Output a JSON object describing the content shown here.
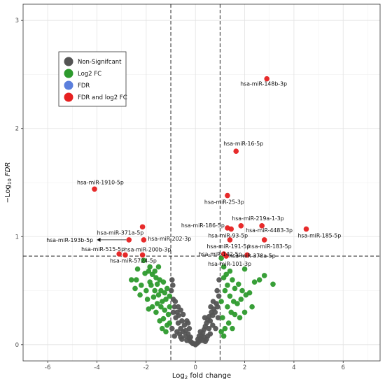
{
  "chart_data": {
    "type": "scatter",
    "xlabel": "Log2 fold change",
    "ylabel": "-Log10 FDR",
    "xlim": [
      -7.0,
      7.5
    ],
    "ylim": [
      -0.15,
      3.15
    ],
    "x_ticks": [
      -6,
      -4,
      -2,
      0,
      2,
      4,
      6
    ],
    "y_ticks": [
      0,
      1,
      2,
      3
    ],
    "vlines": [
      -1,
      1
    ],
    "hline": 0.82,
    "grid": true,
    "legend": {
      "position": "top-left",
      "entries": [
        {
          "label": "Non-Signifcant",
          "color": "#545454"
        },
        {
          "label": "Log2 FC",
          "color": "#2d9a2d"
        },
        {
          "label": "FDR",
          "color": "#5b7fdc"
        },
        {
          "label": "FDR and log2 FC",
          "color": "#e62020"
        }
      ]
    },
    "series": [
      {
        "name": "Non-Signifcant",
        "color": "#545454",
        "points": [
          [
            -0.9,
            0.42
          ],
          [
            -0.85,
            0.35
          ],
          [
            -0.75,
            0.3
          ],
          [
            -0.8,
            0.25
          ],
          [
            -0.7,
            0.2
          ],
          [
            -0.95,
            0.15
          ],
          [
            -0.65,
            0.1
          ],
          [
            -0.6,
            0.07
          ],
          [
            -0.55,
            0.05
          ],
          [
            -0.5,
            0.12
          ],
          [
            -0.45,
            0.18
          ],
          [
            -0.4,
            0.08
          ],
          [
            -0.35,
            0.04
          ],
          [
            -0.3,
            0.1
          ],
          [
            -0.25,
            0.06
          ],
          [
            -0.2,
            0.03
          ],
          [
            -0.15,
            0.02
          ],
          [
            -0.1,
            0.01
          ],
          [
            -0.05,
            0.01
          ],
          [
            0.0,
            0.0
          ],
          [
            0.05,
            0.01
          ],
          [
            0.1,
            0.02
          ],
          [
            0.15,
            0.03
          ],
          [
            0.2,
            0.05
          ],
          [
            0.25,
            0.08
          ],
          [
            0.3,
            0.11
          ],
          [
            0.35,
            0.14
          ],
          [
            0.4,
            0.17
          ],
          [
            0.45,
            0.2
          ],
          [
            0.5,
            0.23
          ],
          [
            0.55,
            0.26
          ],
          [
            0.6,
            0.22
          ],
          [
            0.65,
            0.3
          ],
          [
            0.7,
            0.27
          ],
          [
            0.75,
            0.33
          ],
          [
            0.8,
            0.3
          ],
          [
            0.85,
            0.38
          ],
          [
            0.9,
            0.35
          ],
          [
            0.95,
            0.45
          ],
          [
            0.7,
            0.18
          ],
          [
            0.6,
            0.1
          ],
          [
            0.5,
            0.08
          ],
          [
            0.45,
            0.05
          ],
          [
            0.4,
            0.03
          ],
          [
            0.35,
            0.07
          ],
          [
            0.3,
            0.04
          ],
          [
            -0.3,
            0.2
          ],
          [
            -0.55,
            0.22
          ],
          [
            -0.75,
            0.12
          ],
          [
            -0.85,
            0.08
          ],
          [
            -0.9,
            0.3
          ],
          [
            -0.98,
            0.5
          ],
          [
            -0.92,
            0.55
          ],
          [
            -0.6,
            0.15
          ],
          [
            -0.4,
            0.13
          ],
          [
            -0.2,
            0.07
          ],
          [
            0.2,
            0.12
          ],
          [
            0.88,
            0.5
          ],
          [
            0.92,
            0.25
          ],
          [
            0.82,
            0.15
          ],
          [
            -0.82,
            0.4
          ],
          [
            -0.7,
            0.35
          ],
          [
            -0.68,
            0.27
          ],
          [
            -0.5,
            0.28
          ],
          [
            -0.35,
            0.22
          ],
          [
            0.15,
            0.08
          ],
          [
            0.55,
            0.15
          ],
          [
            0.72,
            0.4
          ],
          [
            0.62,
            0.35
          ],
          [
            -0.95,
            0.6
          ],
          [
            0.96,
            0.6
          ],
          [
            -0.6,
            0.32
          ],
          [
            0.38,
            0.25
          ],
          [
            -0.25,
            0.15
          ],
          [
            0.1,
            0.05
          ]
        ]
      },
      {
        "name": "Log2 FC",
        "color": "#2d9a2d",
        "points": [
          [
            -2.35,
            0.7
          ],
          [
            -2.1,
            0.78
          ],
          [
            -1.85,
            0.72
          ],
          [
            -1.9,
            0.68
          ],
          [
            -1.6,
            0.62
          ],
          [
            -1.75,
            0.65
          ],
          [
            -1.55,
            0.56
          ],
          [
            -1.45,
            0.6
          ],
          [
            -1.3,
            0.58
          ],
          [
            -1.15,
            0.52
          ],
          [
            -1.4,
            0.5
          ],
          [
            -1.25,
            0.48
          ],
          [
            -1.05,
            0.45
          ],
          [
            -1.2,
            0.42
          ],
          [
            -1.35,
            0.4
          ],
          [
            -1.5,
            0.46
          ],
          [
            -1.65,
            0.5
          ],
          [
            -1.8,
            0.55
          ],
          [
            -2.0,
            0.5
          ],
          [
            -2.2,
            0.55
          ],
          [
            -2.4,
            0.6
          ],
          [
            -2.6,
            0.6
          ],
          [
            -2.25,
            0.46
          ],
          [
            -1.95,
            0.42
          ],
          [
            -1.7,
            0.44
          ],
          [
            -1.55,
            0.38
          ],
          [
            -1.4,
            0.35
          ],
          [
            -1.25,
            0.32
          ],
          [
            -1.1,
            0.28
          ],
          [
            -1.3,
            0.24
          ],
          [
            -1.45,
            0.22
          ],
          [
            -1.6,
            0.3
          ],
          [
            -1.75,
            0.35
          ],
          [
            -1.9,
            0.33
          ],
          [
            -1.15,
            0.18
          ],
          [
            -1.05,
            0.2
          ],
          [
            -1.2,
            0.12
          ],
          [
            -1.35,
            0.15
          ],
          [
            -1.05,
            0.35
          ],
          [
            -1.65,
            0.68
          ],
          [
            -2.05,
            0.66
          ],
          [
            -1.85,
            0.58
          ],
          [
            -2.45,
            0.52
          ],
          [
            -1.5,
            0.72
          ],
          [
            1.05,
            0.8
          ],
          [
            1.15,
            0.62
          ],
          [
            1.2,
            0.5
          ],
          [
            1.3,
            0.55
          ],
          [
            1.4,
            0.45
          ],
          [
            1.5,
            0.6
          ],
          [
            1.6,
            0.52
          ],
          [
            1.75,
            0.56
          ],
          [
            1.9,
            0.5
          ],
          [
            2.05,
            0.46
          ],
          [
            2.2,
            0.48
          ],
          [
            2.4,
            0.58
          ],
          [
            2.6,
            0.6
          ],
          [
            2.8,
            0.64
          ],
          [
            3.15,
            0.56
          ],
          [
            1.3,
            0.35
          ],
          [
            1.45,
            0.3
          ],
          [
            1.6,
            0.28
          ],
          [
            1.8,
            0.25
          ],
          [
            1.1,
            0.25
          ],
          [
            1.05,
            0.4
          ],
          [
            1.2,
            0.15
          ],
          [
            1.05,
            0.12
          ],
          [
            1.35,
            0.2
          ],
          [
            1.5,
            0.15
          ],
          [
            2.0,
            0.3
          ],
          [
            1.7,
            0.38
          ],
          [
            2.3,
            0.35
          ],
          [
            1.15,
            0.72
          ],
          [
            1.25,
            0.65
          ],
          [
            2.0,
            0.7
          ],
          [
            1.4,
            0.68
          ],
          [
            1.85,
            0.42
          ],
          [
            1.55,
            0.4
          ],
          [
            1.15,
            0.08
          ]
        ]
      },
      {
        "name": "FDR and log2 FC",
        "color": "#e62020",
        "points": [
          [
            2.9,
            2.46
          ],
          [
            1.65,
            1.79
          ],
          [
            -4.1,
            1.44
          ],
          [
            1.3,
            1.38
          ],
          [
            -2.15,
            1.09
          ],
          [
            1.3,
            1.08
          ],
          [
            1.45,
            1.07
          ],
          [
            1.85,
            1.1
          ],
          [
            2.7,
            1.1
          ],
          [
            4.5,
            1.07
          ],
          [
            -2.7,
            0.97
          ],
          [
            -2.1,
            0.97
          ],
          [
            1.4,
            0.97
          ],
          [
            2.8,
            0.97
          ],
          [
            -3.1,
            0.84
          ],
          [
            -2.85,
            0.83
          ],
          [
            -2.15,
            0.83
          ],
          [
            1.15,
            0.84
          ],
          [
            1.25,
            0.82
          ],
          [
            2.1,
            0.83
          ]
        ]
      }
    ],
    "annotations": [
      {
        "label": "hsa-miR-148b-3p",
        "x": 2.9,
        "y": 2.46
      },
      {
        "label": "hsa-miR-16-5p",
        "x": 1.65,
        "y": 1.79
      },
      {
        "label": "hsa-miR-1910-5p",
        "x": -4.1,
        "y": 1.44
      },
      {
        "label": "hsa-miR-25-3p",
        "x": 1.3,
        "y": 1.38
      },
      {
        "label": "hsa-miR-371a-5p",
        "x": -2.15,
        "y": 1.09
      },
      {
        "label": "hsa-miR-186-5p",
        "x": 1.3,
        "y": 1.08
      },
      {
        "label": "hsa-miR-219a-1-3p",
        "x": 1.85,
        "y": 1.1
      },
      {
        "label": "hsa-miR-4483-3p",
        "x": 2.7,
        "y": 1.1
      },
      {
        "label": "hsa-miR-185-5p",
        "x": 4.5,
        "y": 1.07
      },
      {
        "label": "hsa-miR-193b-5p",
        "x": -2.7,
        "y": 0.97
      },
      {
        "label": "hsa-miR-202-3p",
        "x": -2.1,
        "y": 0.97
      },
      {
        "label": "hsa-miR-93-5p",
        "x": 1.45,
        "y": 1.07
      },
      {
        "label": "hsa-miR-191-5p",
        "x": 1.4,
        "y": 0.97
      },
      {
        "label": "hsa-miR-183-5p",
        "x": 2.8,
        "y": 0.97
      },
      {
        "label": "hsa-miR-515-5p",
        "x": -3.1,
        "y": 0.84
      },
      {
        "label": "hsa-miR-200b-3p",
        "x": -2.15,
        "y": 0.83
      },
      {
        "label": "hsa-miR-5724-5p",
        "x": -2.85,
        "y": 0.83
      },
      {
        "label": "hsa-miR-142-5p",
        "x": 1.15,
        "y": 0.84
      },
      {
        "label": "hsa-miR-378a-5p",
        "x": 2.1,
        "y": 0.83
      },
      {
        "label": "hsa-miR-101-3p",
        "x": 1.25,
        "y": 0.82
      }
    ]
  }
}
